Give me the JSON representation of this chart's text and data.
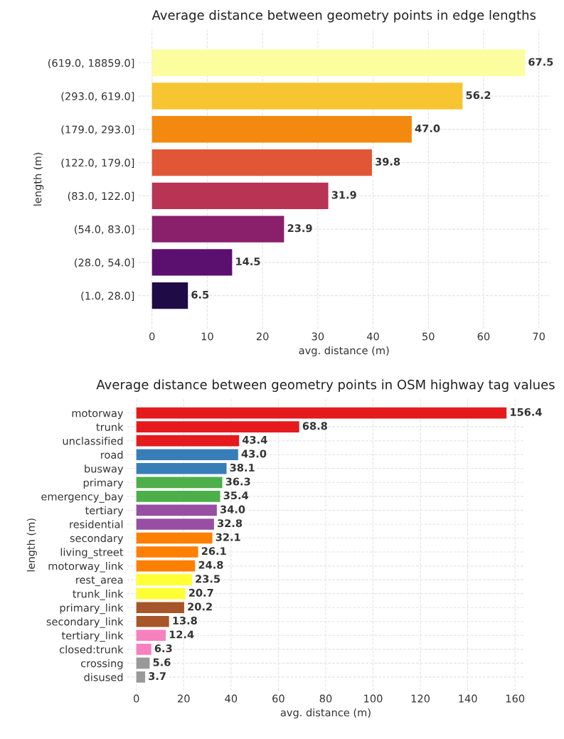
{
  "chart_data": [
    {
      "type": "bar",
      "orientation": "horizontal",
      "title": "Average distance between geometry points in edge lengths",
      "xlabel": "avg. distance (m)",
      "ylabel": "length (m)",
      "categories": [
        "(619.0, 18859.0]",
        "(293.0, 619.0]",
        "(179.0, 293.0]",
        "(122.0, 179.0]",
        "(83.0, 122.0]",
        "(54.0, 83.0]",
        "(28.0, 54.0]",
        "(1.0, 28.0]"
      ],
      "values": [
        67.5,
        56.2,
        47.0,
        39.8,
        31.9,
        23.9,
        14.5,
        6.5
      ],
      "colors": [
        "#fcfd9e",
        "#f6c531",
        "#f3890f",
        "#e05636",
        "#b93354",
        "#8a1f6c",
        "#5b0f6f",
        "#1f0c46"
      ],
      "value_labels": [
        "67.5",
        "56.2",
        "47.0",
        "39.8",
        "31.9",
        "23.9",
        "14.5",
        "6.5"
      ],
      "xlim": [
        -2.5,
        72
      ],
      "xticks": [
        0,
        10,
        20,
        30,
        40,
        50,
        60,
        70
      ],
      "grid": true
    },
    {
      "type": "bar",
      "orientation": "horizontal",
      "title": "Average distance between geometry points in OSM highway tag values",
      "xlabel": "avg. distance (m)",
      "ylabel": "length (m)",
      "categories": [
        "motorway",
        "trunk",
        "unclassified",
        "road",
        "busway",
        "primary",
        "emergency_bay",
        "tertiary",
        "residential",
        "secondary",
        "living_street",
        "motorway_link",
        "rest_area",
        "trunk_link",
        "primary_link",
        "secondary_link",
        "tertiary_link",
        "closed:trunk",
        "crossing",
        "disused"
      ],
      "values": [
        156.4,
        68.8,
        43.4,
        43.0,
        38.1,
        36.3,
        35.4,
        34.0,
        32.8,
        32.1,
        26.1,
        24.8,
        23.5,
        20.7,
        20.2,
        13.8,
        12.4,
        6.3,
        5.6,
        3.7
      ],
      "colors": [
        "#e41a1c",
        "#e41a1c",
        "#e41a1c",
        "#377eb8",
        "#377eb8",
        "#4daf4a",
        "#4daf4a",
        "#984ea3",
        "#984ea3",
        "#ff7f00",
        "#ff7f00",
        "#ff7f00",
        "#ffff33",
        "#ffff33",
        "#a65628",
        "#a65628",
        "#f781bf",
        "#f781bf",
        "#999999",
        "#999999"
      ],
      "value_labels": [
        "156.4",
        "68.8",
        "43.4",
        "43.0",
        "38.1",
        "36.3",
        "35.4",
        "34.0",
        "32.8",
        "32.1",
        "26.1",
        "24.8",
        "23.5",
        "20.7",
        "20.2",
        "13.8",
        "12.4",
        "6.3",
        "5.6",
        "3.7"
      ],
      "xlim": [
        -4,
        164
      ],
      "xticks": [
        0,
        20,
        40,
        60,
        80,
        100,
        120,
        140,
        160
      ],
      "grid": true
    }
  ]
}
